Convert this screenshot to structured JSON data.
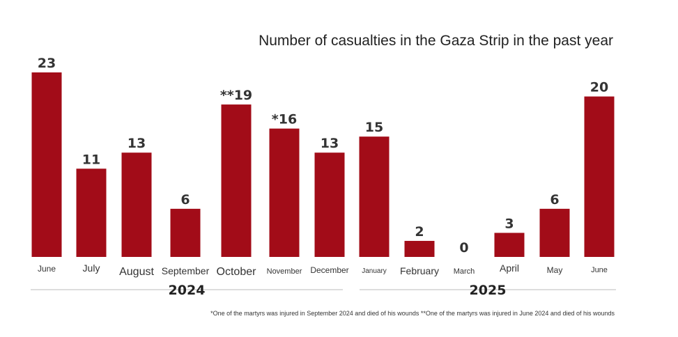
{
  "chart_data": {
    "type": "bar",
    "title": "Number of casualties in the Gaza Strip in the past year",
    "categories": [
      "June",
      "July",
      "August",
      "September",
      "October",
      "November",
      "December",
      "January",
      "February",
      "March",
      "April",
      "May",
      "June"
    ],
    "values": [
      23,
      11,
      13,
      6,
      19,
      16,
      13,
      15,
      2,
      0,
      3,
      6,
      20
    ],
    "value_labels": [
      "23",
      "11",
      "13",
      "6",
      "**19",
      "*16",
      "13",
      "15",
      "2",
      "0",
      "3",
      "6",
      "20"
    ],
    "ylim": [
      0,
      23
    ],
    "year_groups": [
      {
        "label": "2024",
        "months": 7
      },
      {
        "label": "2025",
        "months": 6
      }
    ],
    "footnote": "*One of the martyrs was injured in September 2024 and died of his wounds **One of the martyrs was injured in June 2024 and died of his wounds",
    "bar_color": "#a20c18",
    "grid": false
  }
}
